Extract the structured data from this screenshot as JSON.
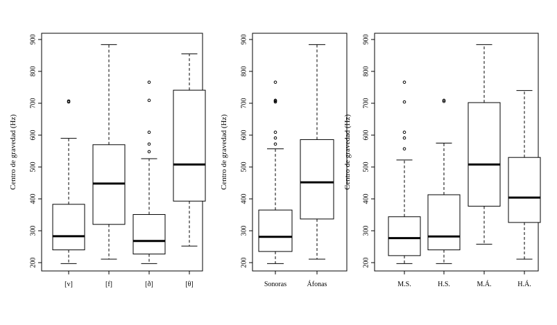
{
  "chart_data": [
    {
      "type": "boxplot",
      "ylabel": "Centro de gravedad (Hz)",
      "ylim": [
        190,
        905
      ],
      "yticks": [
        200,
        300,
        400,
        500,
        600,
        700,
        800,
        900
      ],
      "categories": [
        "[v]",
        "[f]",
        "[ð]",
        "[θ]"
      ],
      "boxes": [
        {
          "label": "[v]",
          "whisker_low": 197,
          "q1": 240,
          "median": 283,
          "q3": 383,
          "whisker_high": 590,
          "outliers": [
            704,
            707
          ]
        },
        {
          "label": "[f]",
          "whisker_low": 211,
          "q1": 320,
          "median": 448,
          "q3": 570,
          "whisker_high": 884,
          "outliers": []
        },
        {
          "label": "[ð]",
          "whisker_low": 197,
          "q1": 227,
          "median": 268,
          "q3": 351,
          "whisker_high": 526,
          "outliers": [
            548,
            572,
            609,
            709,
            766
          ]
        },
        {
          "label": "[θ]",
          "whisker_low": 252,
          "q1": 393,
          "median": 508,
          "q3": 741,
          "whisker_high": 855,
          "outliers": []
        }
      ]
    },
    {
      "type": "boxplot",
      "ylabel": "Centro de gravedad (Hz)",
      "ylim": [
        190,
        905
      ],
      "yticks": [
        200,
        300,
        400,
        500,
        600,
        700,
        800,
        900
      ],
      "categories": [
        "Sonoras",
        "Áfonas"
      ],
      "boxes": [
        {
          "label": "Sonoras",
          "whisker_low": 197,
          "q1": 235,
          "median": 281,
          "q3": 365,
          "whisker_high": 557,
          "outliers": [
            572,
            591,
            609,
            704,
            707,
            709,
            766
          ]
        },
        {
          "label": "Áfonas",
          "whisker_low": 211,
          "q1": 337,
          "median": 452,
          "q3": 586,
          "whisker_high": 884,
          "outliers": []
        }
      ]
    },
    {
      "type": "boxplot",
      "ylabel": "Centro de gravedad (Hz)",
      "ylim": [
        190,
        905
      ],
      "yticks": [
        200,
        300,
        400,
        500,
        600,
        700,
        800,
        900
      ],
      "categories": [
        "M.S.",
        "H.S.",
        "M.Á.",
        "H.Á."
      ],
      "boxes": [
        {
          "label": "M.S.",
          "whisker_low": 197,
          "q1": 222,
          "median": 277,
          "q3": 344,
          "whisker_high": 522,
          "outliers": [
            557,
            591,
            609,
            704,
            766
          ]
        },
        {
          "label": "H.S.",
          "whisker_low": 197,
          "q1": 240,
          "median": 282,
          "q3": 413,
          "whisker_high": 575,
          "outliers": [
            706,
            709
          ]
        },
        {
          "label": "M.Á.",
          "whisker_low": 258,
          "q1": 377,
          "median": 508,
          "q3": 702,
          "whisker_high": 884,
          "outliers": []
        },
        {
          "label": "H.Á.",
          "whisker_low": 211,
          "q1": 326,
          "median": 404,
          "q3": 530,
          "whisker_high": 740,
          "outliers": []
        }
      ]
    }
  ]
}
